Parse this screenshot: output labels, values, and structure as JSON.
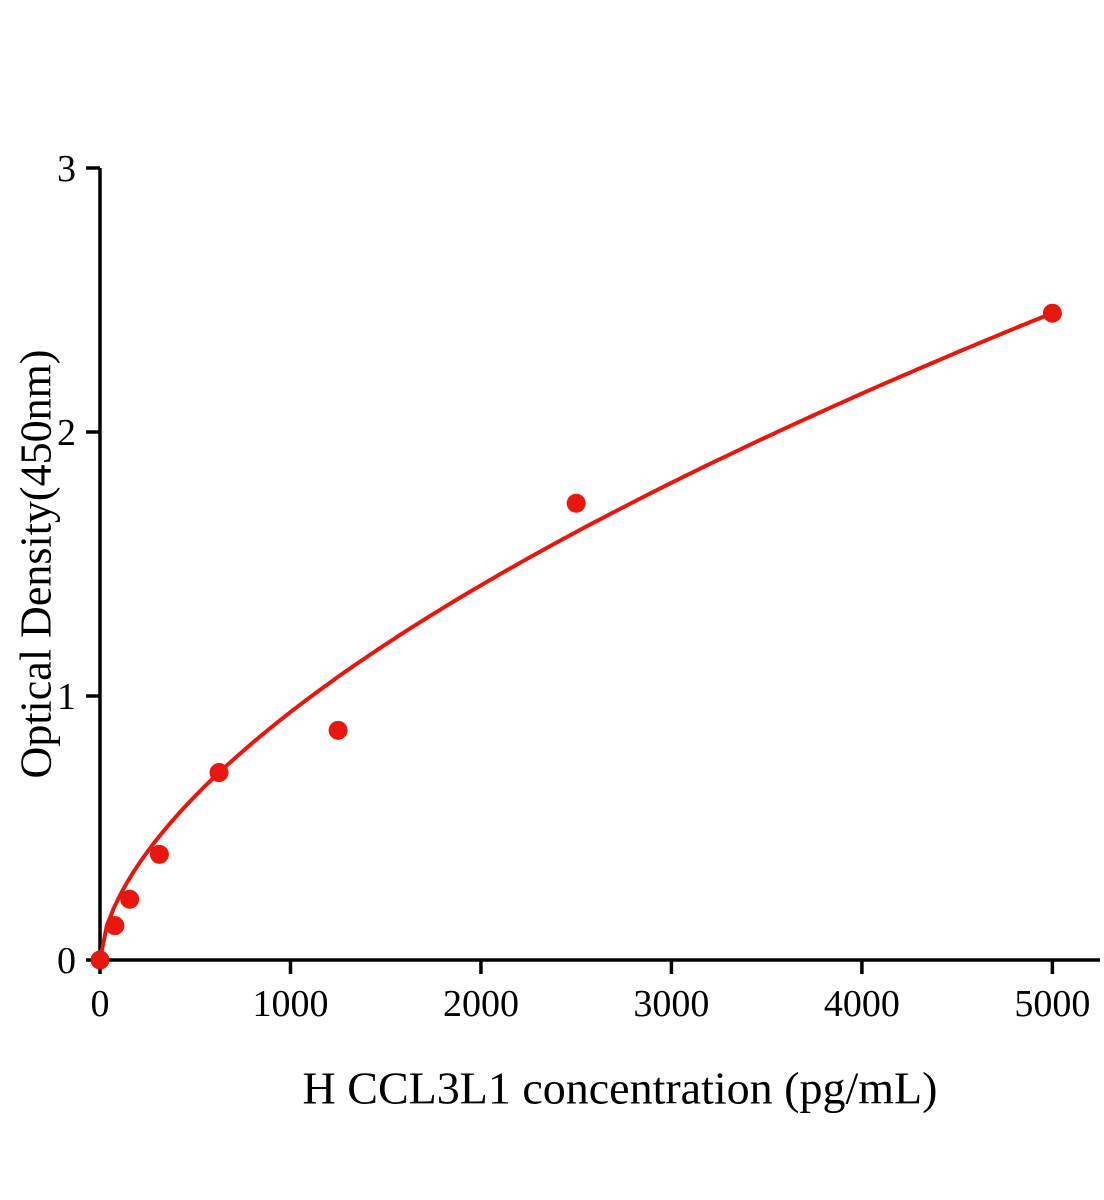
{
  "chart_data": {
    "type": "scatter",
    "title": "",
    "xlabel": "H CCL3L1 concentration (pg/mL)",
    "ylabel": "Optical Density(450nm)",
    "x_ticks": [
      0,
      1000,
      2000,
      3000,
      4000,
      5000
    ],
    "y_ticks": [
      0,
      1,
      2,
      3
    ],
    "xlim": [
      0,
      5250
    ],
    "ylim": [
      0,
      3
    ],
    "grid": false,
    "legend_position": "none",
    "point_color": "#e8160c",
    "line_color": "#e8160c",
    "axis_color": "#000000",
    "points": [
      {
        "x": 0,
        "y": 0
      },
      {
        "x": 78,
        "y": 0.13
      },
      {
        "x": 156,
        "y": 0.23
      },
      {
        "x": 312,
        "y": 0.4
      },
      {
        "x": 625,
        "y": 0.71
      },
      {
        "x": 1250,
        "y": 0.87
      },
      {
        "x": 2500,
        "y": 1.73
      },
      {
        "x": 5000,
        "y": 2.45
      }
    ],
    "fit_curve": {
      "type": "power",
      "a": 0.0153,
      "b": 0.596,
      "x_start": 0,
      "x_end": 5000
    }
  }
}
